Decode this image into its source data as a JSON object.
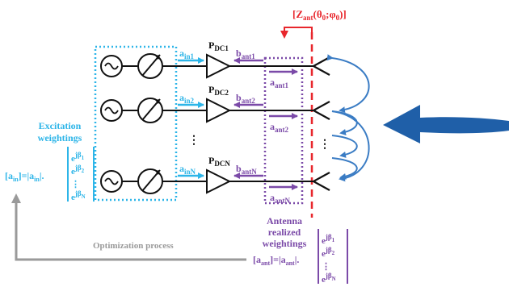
{
  "colors": {
    "cyan": "#2db5e8",
    "purple": "#7b4aa8",
    "red": "#e8262c",
    "grey": "#9a9a9a",
    "blue_arrow": "#1f5fa8",
    "black": "#111111"
  },
  "impedance_label": {
    "prefix": "[Z",
    "sub": "ant",
    "args": "(θ",
    "sub0": "0",
    "sep": ";φ",
    "sub1": "0",
    "close": ")]"
  },
  "excitation": {
    "title_line1": "Excitation",
    "title_line2": "weightings",
    "eq_left": "[a",
    "eq_left_sub": "in",
    "eq_mid": "]=|a",
    "eq_mid_sub": "in",
    "eq_end": "|.",
    "vector": [
      {
        "base": "e",
        "sup": "jβ",
        "sub": "1"
      },
      {
        "base": "e",
        "sup": "jβ",
        "sub": "2"
      },
      {
        "base": "⋮",
        "sup": "",
        "sub": ""
      },
      {
        "base": "e",
        "sup": "jβ",
        "sub": "N"
      }
    ]
  },
  "channels": [
    {
      "a_in": "a",
      "a_in_sub": "in1",
      "p": "P",
      "p_sub": "DC1",
      "b": "b",
      "b_sub": "ant1",
      "a_ant": "a",
      "a_ant_sub": "ant1"
    },
    {
      "a_in": "a",
      "a_in_sub": "in2",
      "p": "P",
      "p_sub": "DC2",
      "b": "b",
      "b_sub": "ant2",
      "a_ant": "a",
      "a_ant_sub": "ant2"
    },
    {
      "a_in": "a",
      "a_in_sub": "inN",
      "p": "P",
      "p_sub": "DCN",
      "b": "b",
      "b_sub": "antN",
      "a_ant": "a",
      "a_ant_sub": "antN"
    }
  ],
  "antenna": {
    "title_line1": "Antenna",
    "title_line2": "realized",
    "title_line3": "weightings",
    "eq_left": "[a",
    "eq_left_sub": "ant",
    "eq_mid": "]=|a",
    "eq_mid_sub": "ant",
    "eq_end": "|.",
    "vector": [
      {
        "base": "e",
        "sup": "jβ",
        "sub": "1"
      },
      {
        "base": "e",
        "sup": "jβ",
        "sub": "2"
      },
      {
        "base": "⋮",
        "sup": "",
        "sub": ""
      },
      {
        "base": "e",
        "sup": "jβ",
        "sub": "N"
      }
    ]
  },
  "optimization_label": "Optimization process"
}
